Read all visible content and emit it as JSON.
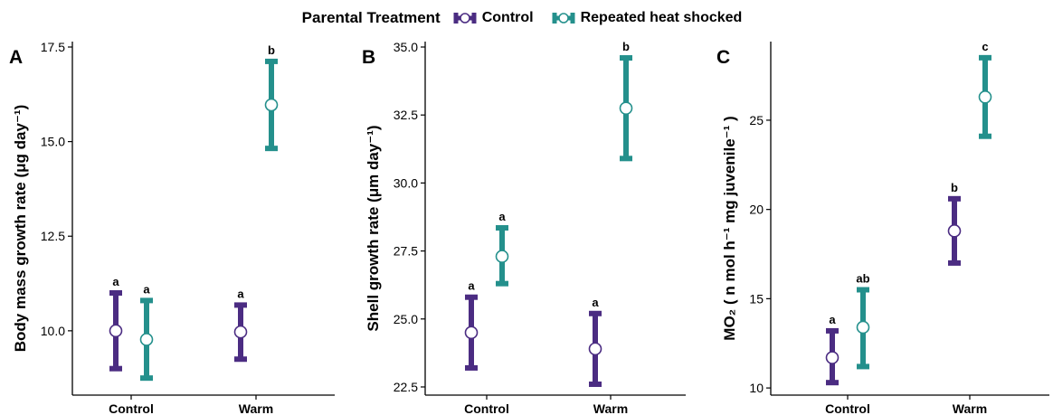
{
  "legend": {
    "title": "Parental Treatment",
    "items": [
      {
        "label": "Control",
        "color": "#4b2c82"
      },
      {
        "label": "Repeated heat shocked",
        "color": "#24908c"
      }
    ]
  },
  "chart_data": [
    {
      "panel": "A",
      "type": "errorbar",
      "ylabel": "Body mass growth rate (μg day⁻¹)",
      "ylim": [
        8.3,
        17.5
      ],
      "yticks": [
        10.0,
        12.5,
        15.0,
        17.5
      ],
      "categories": [
        "Control",
        "Warm"
      ],
      "series": [
        {
          "name": "Control",
          "values": [
            10.0,
            9.97
          ],
          "lower": [
            9.0,
            9.25
          ],
          "upper": [
            11.0,
            10.68
          ],
          "labels": [
            "a",
            "a"
          ]
        },
        {
          "name": "Repeated heat shocked",
          "values": [
            9.77,
            15.97
          ],
          "lower": [
            8.75,
            14.82
          ],
          "upper": [
            10.8,
            17.12
          ],
          "labels": [
            "a",
            "b"
          ]
        }
      ]
    },
    {
      "panel": "B",
      "type": "errorbar",
      "ylabel": "Shell growth rate (μm day⁻¹)",
      "ylim": [
        22.2,
        35.0
      ],
      "yticks": [
        22.5,
        25.0,
        27.5,
        30.0,
        32.5,
        35.0
      ],
      "categories": [
        "Control",
        "Warm"
      ],
      "series": [
        {
          "name": "Control",
          "values": [
            24.5,
            23.9
          ],
          "lower": [
            23.2,
            22.6
          ],
          "upper": [
            25.8,
            25.2
          ],
          "labels": [
            "a",
            "a"
          ]
        },
        {
          "name": "Repeated heat shocked",
          "values": [
            27.3,
            32.75
          ],
          "lower": [
            26.3,
            30.9
          ],
          "upper": [
            28.35,
            34.6
          ],
          "labels": [
            "a",
            "b"
          ]
        }
      ]
    },
    {
      "panel": "C",
      "type": "errorbar",
      "ylabel": "MO₂ ( n mol h⁻¹ mg juvenile⁻¹ )",
      "ylim": [
        9.6,
        29.1
      ],
      "yticks": [
        10,
        15,
        20,
        25
      ],
      "categories": [
        "Control",
        "Warm"
      ],
      "series": [
        {
          "name": "Control",
          "values": [
            11.7,
            18.8
          ],
          "lower": [
            10.3,
            17.0
          ],
          "upper": [
            13.2,
            20.6
          ],
          "labels": [
            "a",
            "b"
          ]
        },
        {
          "name": "Repeated heat shocked",
          "values": [
            13.4,
            26.3
          ],
          "lower": [
            11.2,
            24.1
          ],
          "upper": [
            15.5,
            28.5
          ],
          "labels": [
            "ab",
            "c"
          ]
        }
      ]
    }
  ]
}
